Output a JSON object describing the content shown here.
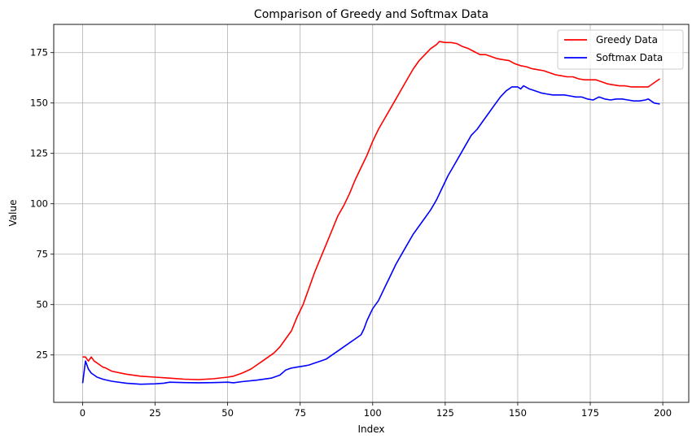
{
  "chart_data": {
    "type": "line",
    "title": "Comparison of Greedy and Softmax Data",
    "xlabel": "Index",
    "ylabel": "Value",
    "xlim": [
      -9.95,
      208.95
    ],
    "ylim": [
      1.5,
      189
    ],
    "xticks": [
      0,
      25,
      50,
      75,
      100,
      125,
      150,
      175,
      200
    ],
    "yticks": [
      25,
      50,
      75,
      100,
      125,
      150,
      175
    ],
    "grid": true,
    "legend_position": "upper right",
    "series": [
      {
        "name": "Greedy Data",
        "color": "#ff0000",
        "points": [
          [
            0,
            24
          ],
          [
            1,
            24
          ],
          [
            2,
            22
          ],
          [
            3,
            24
          ],
          [
            4,
            22
          ],
          [
            5,
            21
          ],
          [
            6,
            20
          ],
          [
            7,
            19
          ],
          [
            8,
            18.5
          ],
          [
            10,
            17
          ],
          [
            15,
            15.5
          ],
          [
            20,
            14.5
          ],
          [
            25,
            14
          ],
          [
            30,
            13.5
          ],
          [
            35,
            13
          ],
          [
            40,
            12.8
          ],
          [
            45,
            13.2
          ],
          [
            50,
            14
          ],
          [
            52,
            14.5
          ],
          [
            55,
            16
          ],
          [
            58,
            18
          ],
          [
            60,
            20
          ],
          [
            62,
            22
          ],
          [
            64,
            24
          ],
          [
            66,
            26
          ],
          [
            68,
            29
          ],
          [
            70,
            33
          ],
          [
            72,
            37
          ],
          [
            74,
            44
          ],
          [
            76,
            50
          ],
          [
            78,
            58
          ],
          [
            80,
            66
          ],
          [
            82,
            73
          ],
          [
            84,
            80
          ],
          [
            86,
            87
          ],
          [
            88,
            94
          ],
          [
            90,
            99
          ],
          [
            92,
            105
          ],
          [
            94,
            112
          ],
          [
            96,
            118
          ],
          [
            98,
            124
          ],
          [
            100,
            131
          ],
          [
            102,
            137
          ],
          [
            104,
            142
          ],
          [
            106,
            147
          ],
          [
            108,
            152
          ],
          [
            110,
            157
          ],
          [
            112,
            162
          ],
          [
            114,
            167
          ],
          [
            116,
            171
          ],
          [
            118,
            174
          ],
          [
            120,
            177
          ],
          [
            122,
            179
          ],
          [
            123,
            180.5
          ],
          [
            125,
            180
          ],
          [
            127,
            180
          ],
          [
            129,
            179.5
          ],
          [
            131,
            178
          ],
          [
            133,
            177
          ],
          [
            135,
            175.5
          ],
          [
            137,
            174
          ],
          [
            139,
            174
          ],
          [
            141,
            173
          ],
          [
            143,
            172
          ],
          [
            145,
            171.5
          ],
          [
            147,
            171
          ],
          [
            149,
            169.5
          ],
          [
            151,
            168.5
          ],
          [
            153,
            168
          ],
          [
            155,
            167
          ],
          [
            157,
            166.5
          ],
          [
            159,
            166
          ],
          [
            161,
            165
          ],
          [
            163,
            164
          ],
          [
            165,
            163.5
          ],
          [
            167,
            163
          ],
          [
            169,
            163
          ],
          [
            171,
            162
          ],
          [
            173,
            161.5
          ],
          [
            175,
            161.5
          ],
          [
            177,
            161.5
          ],
          [
            179,
            160.5
          ],
          [
            181,
            159.5
          ],
          [
            183,
            159
          ],
          [
            185,
            158.5
          ],
          [
            187,
            158.5
          ],
          [
            189,
            158
          ],
          [
            191,
            158
          ],
          [
            193,
            158
          ],
          [
            195,
            158
          ],
          [
            197,
            160
          ],
          [
            199,
            162
          ]
        ]
      },
      {
        "name": "Softmax Data",
        "color": "#0000ff",
        "points": [
          [
            0,
            11
          ],
          [
            1,
            22
          ],
          [
            2,
            18
          ],
          [
            3,
            16
          ],
          [
            4,
            15
          ],
          [
            5,
            14
          ],
          [
            7,
            13
          ],
          [
            10,
            12
          ],
          [
            15,
            11
          ],
          [
            20,
            10.5
          ],
          [
            25,
            10.7
          ],
          [
            28,
            11
          ],
          [
            30,
            11.5
          ],
          [
            35,
            11.3
          ],
          [
            40,
            11.2
          ],
          [
            45,
            11.3
          ],
          [
            50,
            11.5
          ],
          [
            52,
            11.2
          ],
          [
            55,
            11.8
          ],
          [
            60,
            12.5
          ],
          [
            65,
            13.5
          ],
          [
            68,
            15
          ],
          [
            70,
            17.5
          ],
          [
            72,
            18.5
          ],
          [
            74,
            19
          ],
          [
            76,
            19.5
          ],
          [
            78,
            20
          ],
          [
            80,
            21
          ],
          [
            82,
            22
          ],
          [
            84,
            23
          ],
          [
            86,
            25
          ],
          [
            88,
            27
          ],
          [
            90,
            29
          ],
          [
            92,
            31
          ],
          [
            94,
            33
          ],
          [
            96,
            35
          ],
          [
            97,
            38
          ],
          [
            98,
            42
          ],
          [
            99,
            45
          ],
          [
            100,
            48
          ],
          [
            102,
            52
          ],
          [
            104,
            58
          ],
          [
            106,
            64
          ],
          [
            108,
            70
          ],
          [
            110,
            75
          ],
          [
            112,
            80
          ],
          [
            114,
            85
          ],
          [
            116,
            89
          ],
          [
            118,
            93
          ],
          [
            120,
            97
          ],
          [
            122,
            102
          ],
          [
            124,
            108
          ],
          [
            126,
            114
          ],
          [
            128,
            119
          ],
          [
            130,
            124
          ],
          [
            132,
            129
          ],
          [
            134,
            134
          ],
          [
            136,
            137
          ],
          [
            138,
            141
          ],
          [
            140,
            145
          ],
          [
            142,
            149
          ],
          [
            144,
            153
          ],
          [
            146,
            156
          ],
          [
            148,
            158
          ],
          [
            150,
            158
          ],
          [
            151,
            157
          ],
          [
            152,
            158.5
          ],
          [
            154,
            157
          ],
          [
            156,
            156
          ],
          [
            158,
            155
          ],
          [
            160,
            154.5
          ],
          [
            162,
            154
          ],
          [
            164,
            154
          ],
          [
            166,
            154
          ],
          [
            168,
            153.5
          ],
          [
            170,
            153
          ],
          [
            172,
            153
          ],
          [
            174,
            152
          ],
          [
            176,
            151.5
          ],
          [
            178,
            153
          ],
          [
            180,
            152
          ],
          [
            182,
            151.5
          ],
          [
            184,
            152
          ],
          [
            186,
            152
          ],
          [
            188,
            151.5
          ],
          [
            190,
            151
          ],
          [
            192,
            151
          ],
          [
            194,
            151.5
          ],
          [
            195,
            152
          ],
          [
            197,
            150
          ],
          [
            199,
            149.5
          ]
        ]
      }
    ]
  }
}
